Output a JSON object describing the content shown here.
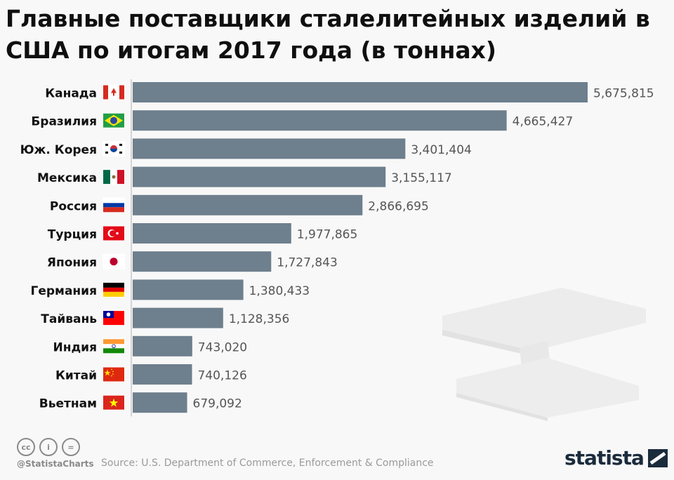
{
  "title": "Главные поставщики сталелитейных изделий в США по итогам 2017 года (в тоннах)",
  "chart_data": {
    "type": "bar",
    "orientation": "horizontal",
    "title": "Главные поставщики сталелитейных изделий в США по итогам 2017 года (в тоннах)",
    "categories": [
      "Канада",
      "Бразилия",
      "Юж. Корея",
      "Мексика",
      "Россия",
      "Турция",
      "Япония",
      "Германия",
      "Тайвань",
      "Индия",
      "Китай",
      "Вьетнам"
    ],
    "values": [
      5675815,
      4665427,
      3401404,
      3155117,
      2866695,
      1977865,
      1727843,
      1380433,
      1128356,
      743020,
      740126,
      679092
    ],
    "value_labels": [
      "5,675,815",
      "4,665,427",
      "3,401,404",
      "3,155,117",
      "2,866,695",
      "1,977,865",
      "1,727,843",
      "1,380,433",
      "1,128,356",
      "743,020",
      "740,126",
      "679,092"
    ],
    "flags": [
      "canada-flag",
      "brazil-flag",
      "south-korea-flag",
      "mexico-flag",
      "russia-flag",
      "turkey-flag",
      "japan-flag",
      "germany-flag",
      "taiwan-flag",
      "india-flag",
      "china-flag",
      "vietnam-flag"
    ],
    "xlim": [
      0,
      5675815
    ],
    "bar_color": "#6e7f8d",
    "grid": false,
    "legend": "none"
  },
  "footer": {
    "handle": "@StatistaCharts",
    "source": "Source: U.S. Department of Commerce, Enforcement & Compliance",
    "logo": "statista",
    "cc_icons": [
      "cc",
      "i",
      "="
    ]
  },
  "colors": {
    "background": "#f8f8f8",
    "title": "#0f0f0f",
    "label": "#111111",
    "value": "#555555",
    "logo": "#1a2b3c"
  }
}
